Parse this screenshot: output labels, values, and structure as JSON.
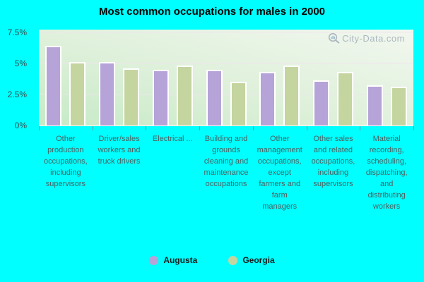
{
  "page": {
    "background_color": "#00ffff"
  },
  "watermark": {
    "text": "City-Data.com",
    "color": "#a9b4bd"
  },
  "y_axis": {
    "tick_labels": [
      "7.5%",
      "5%",
      "2.5%",
      "0%"
    ],
    "tick_values": [
      7.5,
      5,
      2.5,
      0
    ]
  },
  "legend": {
    "items": [
      {
        "label": "Augusta",
        "color": "#b6a3d8"
      },
      {
        "label": "Georgia",
        "color": "#c4d5a0"
      }
    ]
  },
  "chart_data": {
    "type": "bar",
    "title": "Most common occupations for males in 2000",
    "categories": [
      "Other production occupations, including supervisors",
      "Driver/sales workers and truck drivers",
      "Electrical ...",
      "Building and grounds cleaning and maintenance occupations",
      "Other management occupations, except farmers and farm managers",
      "Other sales and related occupations, including supervisors",
      "Material recording, scheduling, dispatching, and distributing workers"
    ],
    "series": [
      {
        "name": "Augusta",
        "color": "#b6a3d8",
        "values": [
          6.3,
          5.0,
          4.4,
          4.4,
          4.2,
          3.5,
          3.1
        ]
      },
      {
        "name": "Georgia",
        "color": "#c4d5a0",
        "values": [
          5.0,
          4.5,
          4.7,
          3.4,
          4.7,
          4.2,
          3.0
        ]
      }
    ],
    "xlabel": "",
    "ylabel": "",
    "ylim": [
      0,
      7.5
    ],
    "yticks": [
      0,
      2.5,
      5,
      7.5
    ],
    "grid": true,
    "legend_position": "bottom"
  }
}
